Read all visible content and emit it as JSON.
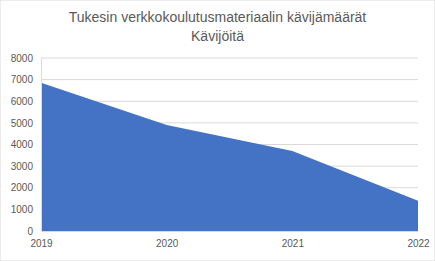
{
  "chart_data": {
    "type": "area",
    "title": "Tukesin verkkokoulutusmateriaalin kävijämäärät",
    "subtitle": "Kävijöitä",
    "categories": [
      "2019",
      "2020",
      "2021",
      "2022"
    ],
    "values": [
      6850,
      4900,
      3700,
      1400
    ],
    "color": "#4472c4",
    "ylim": [
      0,
      8000
    ],
    "yticks": [
      0,
      1000,
      2000,
      3000,
      4000,
      5000,
      6000,
      7000,
      8000
    ],
    "grid": true
  }
}
